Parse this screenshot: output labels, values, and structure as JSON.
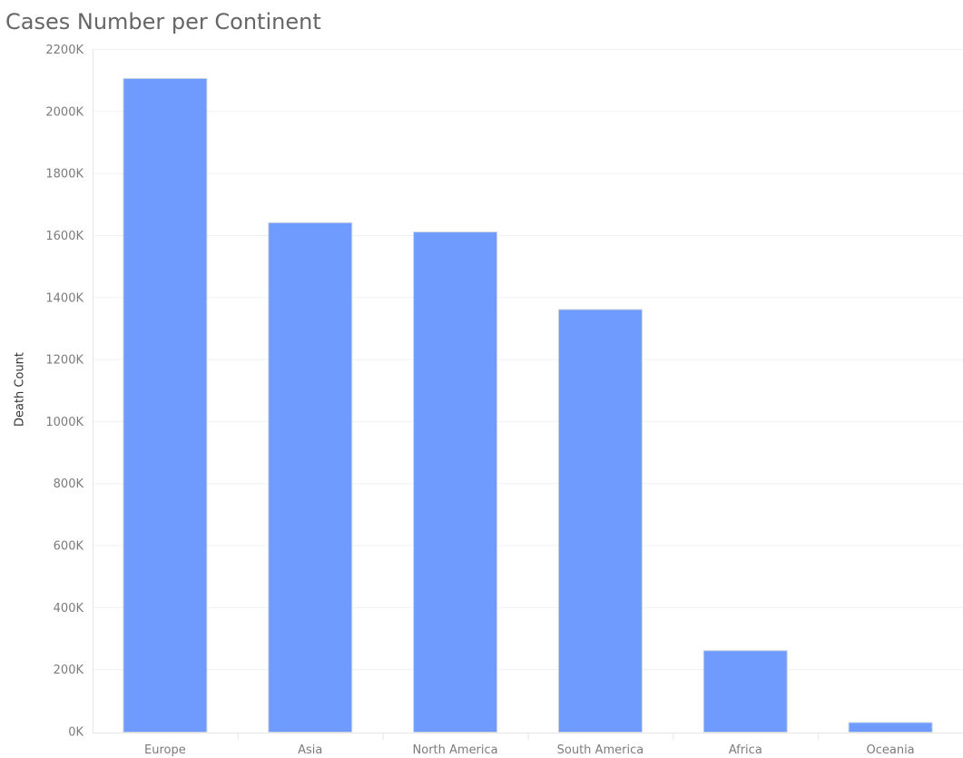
{
  "chart_data": {
    "type": "bar",
    "title": "Cases Number per Continent",
    "xlabel": "",
    "ylabel": "Death Count",
    "categories": [
      "Europe",
      "Asia",
      "North America",
      "South America",
      "Africa",
      "Oceania"
    ],
    "values": [
      2105000,
      1640000,
      1610000,
      1360000,
      260000,
      28000
    ],
    "ylim": [
      0,
      2200000
    ],
    "yticks": [
      0,
      200000,
      400000,
      600000,
      800000,
      1000000,
      1200000,
      1400000,
      1600000,
      1800000,
      2000000,
      2200000
    ],
    "ytick_labels": [
      "0K",
      "200K",
      "400K",
      "600K",
      "800K",
      "1000K",
      "1200K",
      "1400K",
      "1600K",
      "1800K",
      "2000K",
      "2200K"
    ],
    "grid": true,
    "bar_color": "#6f9bff"
  }
}
